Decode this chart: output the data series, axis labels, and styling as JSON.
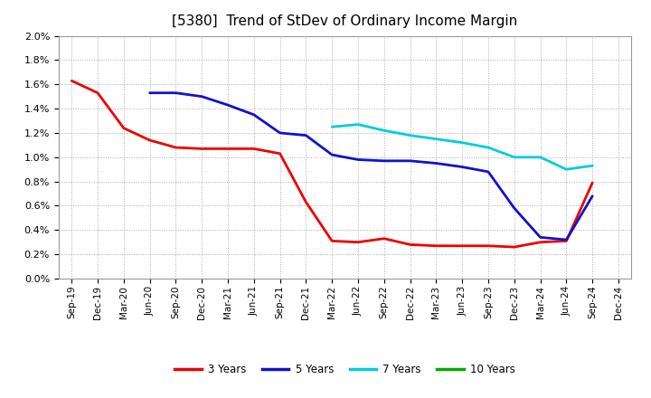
{
  "title": "[5380]  Trend of StDev of Ordinary Income Margin",
  "title_fontsize": 11,
  "background_color": "#ffffff",
  "plot_background_color": "#ffffff",
  "grid_color": "#aaaaaa",
  "xlabels": [
    "Sep-19",
    "Dec-19",
    "Mar-20",
    "Jun-20",
    "Sep-20",
    "Dec-20",
    "Mar-21",
    "Jun-21",
    "Sep-21",
    "Dec-21",
    "Mar-22",
    "Jun-22",
    "Sep-22",
    "Dec-22",
    "Mar-23",
    "Jun-23",
    "Sep-23",
    "Dec-23",
    "Mar-24",
    "Jun-24",
    "Sep-24",
    "Dec-24"
  ],
  "ylim": [
    0.0,
    0.02
  ],
  "yticks": [
    0.0,
    0.002,
    0.004,
    0.006,
    0.008,
    0.01,
    0.012,
    0.014,
    0.016,
    0.018,
    0.02
  ],
  "series": {
    "3 Years": {
      "color": "#ee0000",
      "values": [
        0.0163,
        0.0153,
        0.0124,
        0.0114,
        0.0108,
        0.0107,
        0.0107,
        0.0107,
        0.0103,
        0.0063,
        0.0031,
        0.003,
        0.0033,
        0.0028,
        0.0027,
        0.0027,
        0.0027,
        0.0026,
        0.003,
        0.0031,
        0.0079,
        null
      ]
    },
    "5 Years": {
      "color": "#1111cc",
      "values": [
        null,
        null,
        null,
        0.0153,
        0.0153,
        0.015,
        0.0143,
        0.0135,
        0.012,
        0.0118,
        0.0102,
        0.0098,
        0.0097,
        0.0097,
        0.0095,
        0.0092,
        0.0088,
        0.0058,
        0.0034,
        0.0032,
        0.0068,
        null
      ]
    },
    "7 Years": {
      "color": "#00ccdd",
      "values": [
        null,
        null,
        null,
        null,
        null,
        null,
        null,
        null,
        null,
        null,
        0.0125,
        0.0127,
        0.0122,
        0.0118,
        0.0115,
        0.0112,
        0.0108,
        0.01,
        0.01,
        0.009,
        0.0093,
        null
      ]
    },
    "10 Years": {
      "color": "#00aa00",
      "values": [
        null,
        null,
        null,
        null,
        null,
        null,
        null,
        null,
        null,
        null,
        null,
        null,
        null,
        null,
        null,
        null,
        null,
        null,
        null,
        null,
        null,
        null
      ]
    }
  },
  "legend_entries": [
    "3 Years",
    "5 Years",
    "7 Years",
    "10 Years"
  ],
  "legend_colors": [
    "#ee0000",
    "#1111cc",
    "#00ccdd",
    "#00aa00"
  ]
}
